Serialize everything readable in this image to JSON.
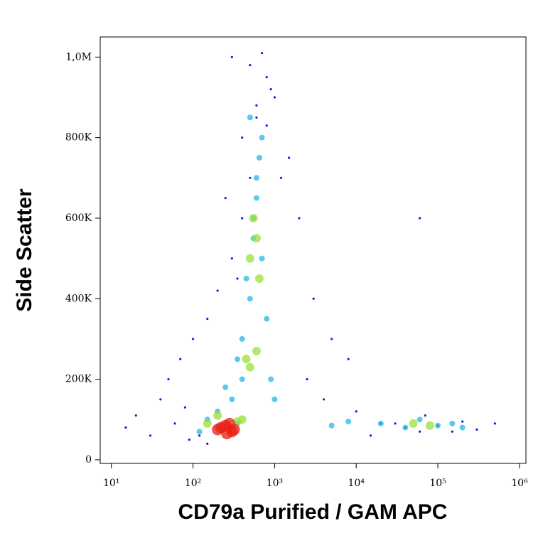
{
  "chart_data": {
    "type": "density",
    "x_label": "CD79a Purified / GAM APC",
    "y_label": "Side Scatter",
    "xscale": "log",
    "xlim": [
      7.3,
      1200000
    ],
    "ylim": [
      -9000,
      1050000
    ],
    "xticks": [
      {
        "value": 10,
        "label": "10¹"
      },
      {
        "value": 100,
        "label": "10²"
      },
      {
        "value": 1000,
        "label": "10³"
      },
      {
        "value": 10000,
        "label": "10⁴"
      },
      {
        "value": 100000,
        "label": "10⁵"
      },
      {
        "value": 1000000,
        "label": "10⁶"
      }
    ],
    "yticks": [
      0,
      {
        "value": 200000,
        "label": "200K"
      },
      {
        "value": 400000,
        "label": "400K"
      },
      {
        "value": 600000,
        "label": "600K"
      },
      {
        "value": 800000,
        "label": "800K"
      },
      {
        "value": 1000000,
        "label": "1,0M"
      }
    ],
    "series": [
      {
        "color": "#1a1adc",
        "x": [
          15,
          20,
          30,
          40,
          60,
          80,
          50,
          70,
          100,
          150,
          200,
          300,
          400,
          500,
          600,
          800,
          1000,
          1500,
          2000,
          3000,
          5000,
          8000,
          10000,
          20000,
          40000,
          60000,
          100000,
          200000,
          300000,
          500000,
          300,
          500,
          700,
          900,
          400,
          600,
          800,
          1200,
          250,
          350,
          150,
          120,
          90,
          2500,
          4000,
          15000,
          30000,
          70000,
          150000,
          60000
        ],
        "y": [
          80000,
          110000,
          60000,
          150000,
          90000,
          130000,
          200000,
          250000,
          300000,
          350000,
          420000,
          500000,
          600000,
          700000,
          850000,
          950000,
          900000,
          750000,
          600000,
          400000,
          300000,
          250000,
          120000,
          90000,
          80000,
          70000,
          85000,
          95000,
          75000,
          90000,
          1000000,
          980000,
          1010000,
          920000,
          800000,
          880000,
          830000,
          700000,
          650000,
          450000,
          40000,
          60000,
          50000,
          200000,
          150000,
          60000,
          90000,
          110000,
          70000,
          600000
        ]
      },
      {
        "color": "#22b8e8",
        "x": [
          300,
          400,
          500,
          600,
          700,
          500,
          600,
          400,
          700,
          800,
          350,
          450,
          550,
          20000,
          40000,
          60000,
          100000,
          150000,
          200000,
          8000,
          5000,
          150,
          200,
          120,
          250,
          350,
          900,
          1000,
          650,
          550
        ],
        "y": [
          150000,
          300000,
          400000,
          700000,
          800000,
          850000,
          650000,
          200000,
          500000,
          350000,
          250000,
          450000,
          600000,
          90000,
          80000,
          100000,
          85000,
          90000,
          80000,
          95000,
          85000,
          100000,
          120000,
          70000,
          180000,
          90000,
          200000,
          150000,
          750000,
          550000
        ]
      },
      {
        "color": "#9be03a",
        "x": [
          500,
          600,
          550,
          650,
          450,
          600,
          500,
          150,
          200,
          400,
          350,
          50000,
          80000
        ],
        "y": [
          500000,
          550000,
          600000,
          450000,
          250000,
          270000,
          230000,
          90000,
          110000,
          100000,
          95000,
          90000,
          85000
        ]
      },
      {
        "color": "#e81c10",
        "x": [
          200,
          250,
          300,
          280,
          220,
          320,
          260
        ],
        "y": [
          75000,
          85000,
          70000,
          90000,
          80000,
          75000,
          65000
        ]
      }
    ]
  }
}
